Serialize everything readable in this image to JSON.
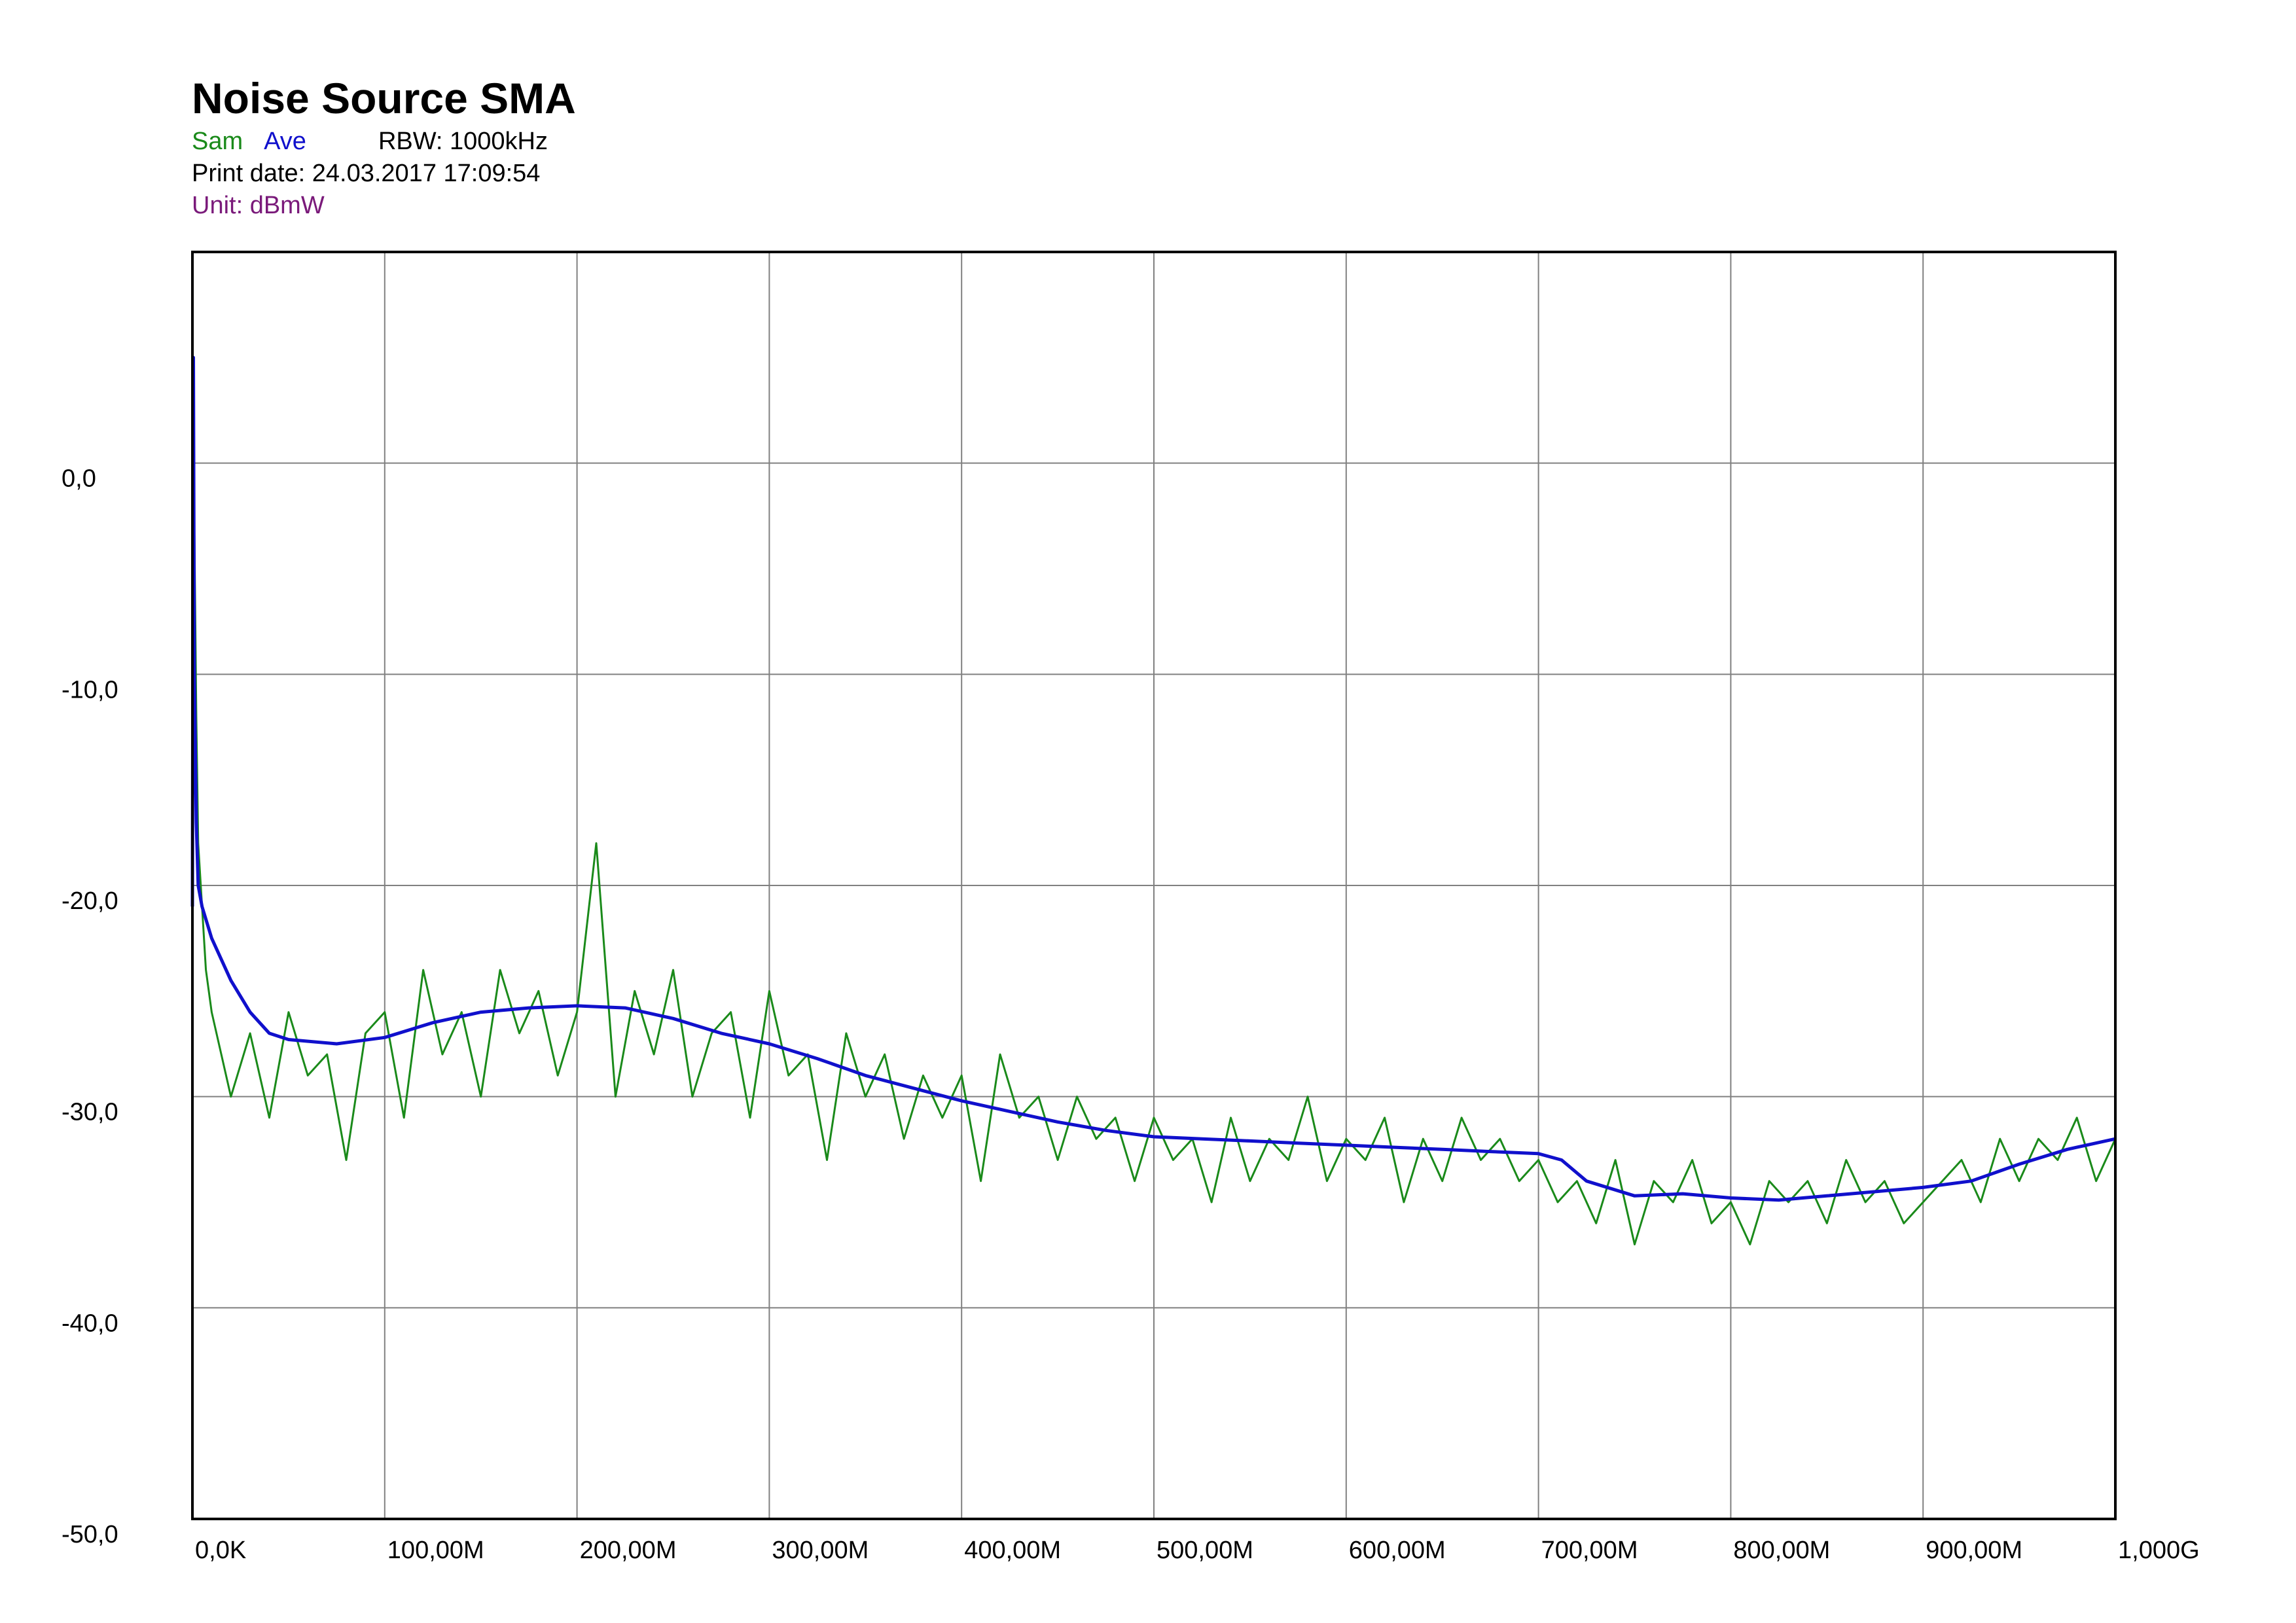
{
  "header": {
    "title": "Noise Source SMA",
    "legend_sam": "Sam",
    "legend_ave": "Ave",
    "rbw": "RBW: 1000kHz",
    "print_date": "Print date: 24.03.2017 17:09:54",
    "unit": "Unit: dBmW"
  },
  "colors": {
    "sam": "#1a8a1a",
    "ave": "#1010cc",
    "unit": "#7a1a7a",
    "grid": "#808080",
    "frame": "#000000"
  },
  "chart_data": {
    "type": "line",
    "title": "Noise Source SMA",
    "xlim": [
      0,
      1000
    ],
    "ylim": [
      -50,
      10
    ],
    "grid": true,
    "x_unit": "MHz",
    "x_ticks": [
      {
        "value": 0,
        "label": "0,0K"
      },
      {
        "value": 100,
        "label": "100,00M"
      },
      {
        "value": 200,
        "label": "200,00M"
      },
      {
        "value": 300,
        "label": "300,00M"
      },
      {
        "value": 400,
        "label": "400,00M"
      },
      {
        "value": 500,
        "label": "500,00M"
      },
      {
        "value": 600,
        "label": "600,00M"
      },
      {
        "value": 700,
        "label": "700,00M"
      },
      {
        "value": 800,
        "label": "800,00M"
      },
      {
        "value": 900,
        "label": "900,00M"
      },
      {
        "value": 1000,
        "label": "1,000G"
      }
    ],
    "y_ticks": [
      {
        "value": 0,
        "label": "0,0"
      },
      {
        "value": -10,
        "label": "-10,0"
      },
      {
        "value": -20,
        "label": "-20,0"
      },
      {
        "value": -30,
        "label": "-30,0"
      },
      {
        "value": -40,
        "label": "-40,0"
      },
      {
        "value": -50,
        "label": "-50,0"
      }
    ],
    "series": [
      {
        "name": "Sam",
        "x": [
          0,
          0.5,
          1,
          2,
          3,
          5,
          7,
          10,
          15,
          20,
          30,
          40,
          50,
          60,
          70,
          80,
          90,
          100,
          110,
          120,
          130,
          140,
          150,
          160,
          170,
          180,
          190,
          200,
          210,
          220,
          230,
          240,
          250,
          260,
          270,
          280,
          290,
          300,
          310,
          320,
          330,
          340,
          350,
          360,
          370,
          380,
          390,
          400,
          410,
          420,
          430,
          440,
          450,
          460,
          470,
          480,
          490,
          500,
          510,
          520,
          530,
          540,
          550,
          560,
          570,
          580,
          590,
          600,
          610,
          620,
          630,
          640,
          650,
          660,
          670,
          680,
          690,
          700,
          710,
          720,
          730,
          740,
          750,
          760,
          770,
          780,
          790,
          800,
          810,
          820,
          830,
          840,
          850,
          860,
          870,
          880,
          890,
          900,
          910,
          920,
          930,
          940,
          950,
          960,
          970,
          980,
          990,
          1000
        ],
        "values": [
          -23,
          5,
          -3,
          -12,
          -18,
          -21,
          -24,
          -26,
          -28,
          -30,
          -27,
          -31,
          -26,
          -29,
          -28,
          -33,
          -27,
          -26,
          -31,
          -24,
          -28,
          -26,
          -30,
          -24,
          -27,
          -25,
          -29,
          -26,
          -18,
          -30,
          -25,
          -28,
          -24,
          -30,
          -27,
          -26,
          -31,
          -25,
          -29,
          -28,
          -33,
          -27,
          -30,
          -28,
          -32,
          -29,
          -31,
          -29,
          -34,
          -28,
          -31,
          -30,
          -33,
          -30,
          -32,
          -31,
          -34,
          -31,
          -33,
          -32,
          -35,
          -31,
          -34,
          -32,
          -33,
          -30,
          -34,
          -32,
          -33,
          -31,
          -35,
          -32,
          -34,
          -31,
          -33,
          -32,
          -34,
          -33,
          -35,
          -34,
          -36,
          -33,
          -37,
          -34,
          -35,
          -33,
          -36,
          -35,
          -37,
          -34,
          -35,
          -34,
          -36,
          -33,
          -35,
          -34,
          -36,
          -35,
          -34,
          -33,
          -35,
          -32,
          -34,
          -32,
          -33,
          -31,
          -34,
          -32
        ]
      },
      {
        "name": "Ave",
        "x": [
          0,
          0.5,
          1,
          2,
          3,
          5,
          10,
          20,
          30,
          40,
          50,
          75,
          100,
          125,
          150,
          175,
          200,
          225,
          250,
          275,
          300,
          325,
          350,
          375,
          400,
          425,
          450,
          475,
          500,
          525,
          550,
          575,
          600,
          625,
          650,
          675,
          700,
          712,
          725,
          750,
          775,
          800,
          825,
          850,
          875,
          900,
          925,
          950,
          975,
          1000
        ],
        "values": [
          -21,
          5,
          -10,
          -17,
          -20,
          -21,
          -22.5,
          -24.5,
          -26,
          -27,
          -27.3,
          -27.5,
          -27.2,
          -26.5,
          -26,
          -25.8,
          -25.7,
          -25.8,
          -26.3,
          -27,
          -27.5,
          -28.2,
          -29,
          -29.6,
          -30.2,
          -30.7,
          -31.2,
          -31.6,
          -31.9,
          -32,
          -32.1,
          -32.2,
          -32.3,
          -32.4,
          -32.5,
          -32.6,
          -32.7,
          -33,
          -34,
          -34.7,
          -34.6,
          -34.8,
          -34.9,
          -34.7,
          -34.5,
          -34.3,
          -34,
          -33.2,
          -32.5,
          -32
        ]
      }
    ]
  }
}
